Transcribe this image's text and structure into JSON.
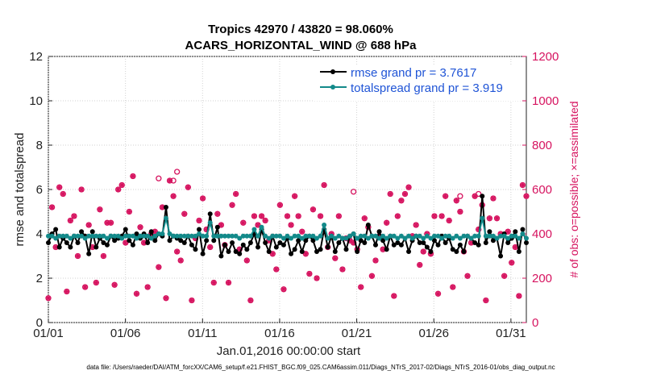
{
  "chart_data": {
    "type": "line",
    "title": "Tropics 42970 / 43820 = 98.060%",
    "subtitle": "ACARS_HORIZONTAL_WIND @ 688 hPa",
    "xlabel": "Jan.01,2016 00:00:00 start",
    "ylabel": "rmse and totalspread",
    "ylabel_right": "# of obs: o=possible; ×=assimilated",
    "xlim": [
      1,
      32
    ],
    "ylim": [
      0,
      12
    ],
    "ylim_right": [
      0,
      1200
    ],
    "x_ticks": [
      1,
      6,
      11,
      16,
      21,
      26,
      31
    ],
    "x_tick_labels": [
      "01/01",
      "01/06",
      "01/11",
      "01/16",
      "01/21",
      "01/26",
      "01/31"
    ],
    "y_ticks": [
      0,
      2,
      4,
      6,
      8,
      10,
      12
    ],
    "y_ticks_right": [
      0,
      200,
      400,
      600,
      800,
      1000,
      1200
    ],
    "legend_position": "top-right",
    "colors": {
      "rmse": "#000000",
      "spread": "#138a8a",
      "obs": "#d6135f",
      "legend_text": "#1f54d6",
      "axis": "#222222"
    },
    "series": [
      {
        "name": "rmse grand pr = 3.7617",
        "axis": "left",
        "values": [
          3.6,
          4.0,
          4.2,
          3.4,
          3.8,
          3.6,
          3.4,
          3.9,
          3.6,
          4.1,
          3.9,
          3.1,
          4.1,
          3.4,
          3.8,
          3.6,
          3.5,
          3.9,
          3.7,
          3.8,
          3.9,
          4.2,
          3.7,
          3.5,
          4.0,
          3.8,
          4.0,
          3.6,
          4.1,
          3.7,
          4.0,
          3.9,
          5.2,
          3.7,
          3.9,
          3.8,
          3.7,
          3.6,
          3.9,
          3.5,
          3.3,
          4.2,
          3.1,
          3.7,
          4.9,
          3.7,
          4.3,
          3.0,
          3.5,
          3.2,
          3.6,
          3.2,
          3.1,
          3.5,
          3.3,
          3.6,
          4.0,
          3.4,
          4.2,
          3.6,
          3.2,
          3.9,
          3.4,
          3.6,
          3.5,
          3.8,
          3.1,
          3.3,
          3.7,
          3.2,
          3.7,
          3.9,
          3.7,
          3.2,
          3.3,
          4.2,
          3.4,
          3.9,
          3.2,
          3.6,
          3.8,
          3.3,
          3.9,
          4.0,
          3.2,
          3.7,
          3.6,
          4.4,
          3.9,
          3.5,
          4.1,
          3.7,
          3.3,
          3.9,
          3.5,
          3.6,
          3.5,
          3.8,
          3.2,
          3.7,
          3.9,
          3.6,
          3.6,
          3.4,
          3.2,
          3.7,
          3.5,
          3.9,
          3.6,
          3.8,
          3.3,
          3.2,
          3.5,
          3.2,
          3.9,
          3.8,
          3.6,
          3.5,
          5.7,
          3.6,
          4.1,
          3.7,
          3.8,
          3.0,
          4.0,
          3.6,
          3.8,
          4.1,
          3.2,
          4.2,
          3.6
        ]
      },
      {
        "name": "totalspread grand pr = 3.919",
        "axis": "left",
        "values": [
          3.9,
          3.9,
          3.8,
          3.9,
          3.9,
          3.9,
          3.8,
          3.9,
          3.9,
          3.9,
          3.8,
          3.9,
          3.9,
          3.9,
          3.9,
          3.9,
          3.8,
          3.9,
          3.9,
          3.9,
          3.8,
          3.9,
          3.9,
          3.9,
          3.8,
          3.9,
          3.9,
          3.9,
          3.8,
          3.9,
          4.0,
          4.0,
          4.7,
          4.0,
          3.9,
          3.9,
          3.9,
          3.9,
          3.9,
          3.9,
          3.9,
          4.0,
          3.9,
          3.9,
          4.5,
          3.9,
          3.9,
          3.9,
          3.9,
          3.9,
          3.9,
          3.9,
          3.8,
          3.9,
          3.9,
          3.9,
          4.2,
          3.9,
          4.3,
          3.9,
          3.8,
          3.9,
          3.9,
          3.9,
          3.8,
          3.9,
          3.8,
          3.9,
          3.9,
          3.8,
          3.9,
          3.9,
          3.9,
          3.8,
          3.9,
          4.4,
          3.8,
          3.9,
          3.8,
          3.9,
          3.8,
          3.8,
          3.9,
          4.0,
          3.8,
          3.9,
          3.9,
          3.8,
          3.9,
          3.9,
          3.8,
          3.9,
          3.8,
          3.9,
          3.9,
          3.8,
          3.9,
          3.8,
          3.9,
          3.8,
          3.9,
          3.9,
          3.8,
          3.9,
          3.8,
          3.9,
          3.9,
          3.8,
          3.9,
          3.9,
          3.8,
          3.9,
          3.8,
          3.9,
          3.9,
          3.8,
          3.9,
          3.9,
          4.7,
          3.9,
          3.9,
          3.9,
          3.8,
          3.9,
          3.9,
          3.8,
          3.9,
          3.9,
          3.8,
          4.0,
          3.8
        ]
      }
    ],
    "obs_counts": {
      "axis": "right",
      "values": [
        110,
        520,
        340,
        610,
        580,
        140,
        460,
        480,
        300,
        600,
        160,
        440,
        340,
        180,
        510,
        300,
        450,
        450,
        170,
        600,
        620,
        360,
        500,
        660,
        130,
        430,
        360,
        160,
        400,
        410,
        250,
        520,
        110,
        640,
        570,
        320,
        280,
        490,
        610,
        100,
        380,
        460,
        560,
        420,
        340,
        180,
        490,
        440,
        350,
        180,
        530,
        580,
        330,
        450,
        280,
        100,
        480,
        440,
        480,
        460,
        370,
        310,
        240,
        530,
        150,
        480,
        440,
        570,
        480,
        410,
        310,
        220,
        510,
        200,
        480,
        620,
        340,
        400,
        290,
        480,
        240,
        380,
        370,
        360,
        330,
        160,
        470,
        430,
        210,
        280,
        390,
        330,
        450,
        580,
        120,
        480,
        550,
        580,
        610,
        390,
        440,
        260,
        320,
        400,
        310,
        480,
        130,
        480,
        570,
        460,
        160,
        550,
        500,
        320,
        210,
        360,
        570,
        420,
        530,
        100,
        470,
        560,
        470,
        400,
        210,
        410,
        270,
        340,
        120,
        620,
        570
      ],
      "possible_extra": [
        {
          "index": 30,
          "value": 650
        },
        {
          "index": 34,
          "value": 640
        },
        {
          "index": 35,
          "value": 680
        },
        {
          "index": 83,
          "value": 590
        },
        {
          "index": 112,
          "value": 570
        },
        {
          "index": 117,
          "value": 580
        }
      ]
    }
  },
  "footer": "data file: /Users/raeder/DAI/ATM_forcXX/CAM6_setup/f.e21.FHIST_BGC.f09_025.CAM6assim.011/Diags_NTrS_2017-02/Diags_NTrS_2016-01/obs_diag_output.nc"
}
